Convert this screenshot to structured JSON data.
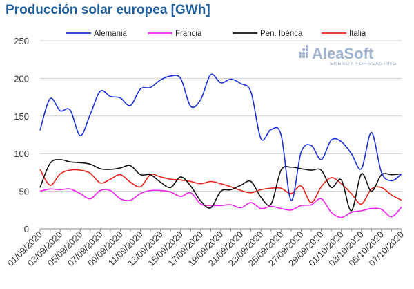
{
  "title": "Producción solar europea [GWh]",
  "logo": {
    "name": "AleaSoft",
    "tagline": "ENERGY FORECASTING"
  },
  "colors": {
    "title": "#1f5c99",
    "Alemania": "#1a2fd6",
    "Francia": "#ee22ee",
    "Pen. Ibérica": "#111111",
    "Italia": "#e8201a",
    "grid": "#cfcfcf"
  },
  "chart_data": {
    "type": "line",
    "title": "Producción solar europea [GWh]",
    "xlabel": "",
    "ylabel": "",
    "ylim": [
      0,
      250
    ],
    "yticks": [
      0,
      50,
      100,
      150,
      200,
      250
    ],
    "grid": "horizontal",
    "legend_position": "top",
    "x": [
      "01/09/2020",
      "02/09/2020",
      "03/09/2020",
      "04/09/2020",
      "05/09/2020",
      "06/09/2020",
      "07/09/2020",
      "08/09/2020",
      "09/09/2020",
      "10/09/2020",
      "11/09/2020",
      "12/09/2020",
      "13/09/2020",
      "14/09/2020",
      "15/09/2020",
      "16/09/2020",
      "17/09/2020",
      "18/09/2020",
      "19/09/2020",
      "20/09/2020",
      "21/09/2020",
      "22/09/2020",
      "23/09/2020",
      "24/09/2020",
      "25/09/2020",
      "26/09/2020",
      "27/09/2020",
      "28/09/2020",
      "29/09/2020",
      "30/09/2020",
      "01/10/2020",
      "02/10/2020",
      "03/10/2020",
      "04/10/2020",
      "05/10/2020",
      "06/10/2020",
      "07/10/2020"
    ],
    "xtick_labels": [
      "01/09/2020",
      "03/09/2020",
      "05/09/2020",
      "07/09/2020",
      "09/09/2020",
      "11/09/2020",
      "13/09/2020",
      "15/09/2020",
      "17/09/2020",
      "19/09/2020",
      "21/09/2020",
      "23/09/2020",
      "25/09/2020",
      "27/09/2020",
      "29/09/2020",
      "01/10/2020",
      "03/10/2020",
      "05/10/2020",
      "07/10/2020"
    ],
    "series": [
      {
        "name": "Alemania",
        "values": [
          131,
          173,
          157,
          158,
          124,
          152,
          183,
          176,
          174,
          164,
          186,
          188,
          198,
          203,
          200,
          163,
          172,
          205,
          194,
          199,
          193,
          182,
          120,
          132,
          125,
          38,
          102,
          111,
          92,
          118,
          116,
          100,
          80,
          128,
          75,
          64,
          73
        ]
      },
      {
        "name": "Francia",
        "values": [
          50,
          53,
          52,
          53,
          47,
          40,
          51,
          51,
          40,
          38,
          47,
          51,
          51,
          49,
          43,
          48,
          33,
          31,
          31,
          32,
          28,
          35,
          27,
          30,
          27,
          25,
          31,
          32,
          40,
          22,
          15,
          22,
          24,
          27,
          26,
          16,
          29
        ]
      },
      {
        "name": "Pen. Ibérica",
        "values": [
          55,
          87,
          92,
          89,
          88,
          86,
          80,
          79,
          81,
          84,
          72,
          72,
          62,
          55,
          69,
          57,
          37,
          28,
          50,
          52,
          58,
          63,
          42,
          33,
          78,
          82,
          80,
          78,
          78,
          55,
          65,
          24,
          73,
          50,
          72,
          72,
          73
        ]
      },
      {
        "name": "Italia",
        "values": [
          79,
          58,
          73,
          78,
          78,
          74,
          61,
          66,
          72,
          62,
          56,
          72,
          69,
          66,
          65,
          63,
          60,
          63,
          60,
          56,
          51,
          48,
          52,
          54,
          54,
          47,
          57,
          35,
          56,
          68,
          60,
          47,
          33,
          53,
          55,
          45,
          38
        ]
      }
    ]
  }
}
